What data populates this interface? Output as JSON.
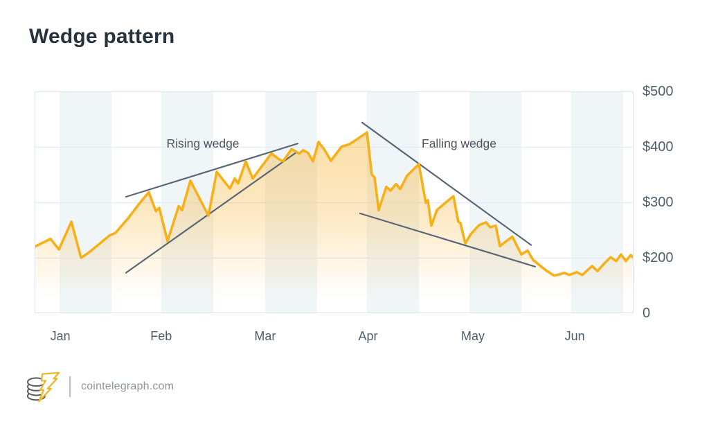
{
  "title": "Wedge pattern",
  "footer": {
    "site": "cointelegraph.com",
    "logo": "cointelegraph coin-stack with lightning bolt"
  },
  "colors": {
    "line": "#F7B017",
    "fill": "#F6AC1E",
    "trendline": "#5A6774",
    "grid": "#E4EDF3",
    "band": "#F0F5F8",
    "plot_border": "#D9E4EC",
    "title_text": "#26323E",
    "axis_text": "#4E5D6B",
    "annotation_text": "#49545F"
  },
  "chart_data": {
    "type": "area",
    "title": "Wedge pattern",
    "x_unit": "months (t: 0 = left edge of plot, 1 unit = 1 month; month tick labels sit at ~0.25+k)",
    "y_unit": "USD",
    "legend": "none",
    "grid": "horizontal lines at $200/$300/$400/$500 plus alternating half-month background bands",
    "x_axis": {
      "ticks": [
        {
          "label": "Jan",
          "t": 0.25
        },
        {
          "label": "Feb",
          "t": 1.23
        },
        {
          "label": "Mar",
          "t": 2.24
        },
        {
          "label": "Apr",
          "t": 3.24
        },
        {
          "label": "May",
          "t": 4.26
        },
        {
          "label": "Jun",
          "t": 5.25
        }
      ]
    },
    "y_axis": {
      "ticks": [
        {
          "label": "$500",
          "value": 500,
          "py": 0
        },
        {
          "label": "$400",
          "value": 400,
          "py": 80
        },
        {
          "label": "$300",
          "value": 300,
          "py": 160
        },
        {
          "label": "$200",
          "value": 200,
          "py": 240
        },
        {
          "label": "0",
          "value": 0,
          "py": 320
        }
      ]
    },
    "bands": [
      [
        0.242,
        0.747
      ],
      [
        1.231,
        1.736
      ],
      [
        2.241,
        2.746
      ],
      [
        3.23,
        3.735
      ],
      [
        4.226,
        4.731
      ],
      [
        5.215,
        5.72
      ]
    ],
    "series": [
      {
        "name": "price",
        "points": [
          [
            0.0,
            220
          ],
          [
            0.155,
            234
          ],
          [
            0.236,
            215
          ],
          [
            0.357,
            265
          ],
          [
            0.451,
            200
          ],
          [
            0.525,
            209
          ],
          [
            0.727,
            240
          ],
          [
            0.787,
            245
          ],
          [
            0.908,
            271
          ],
          [
            1.023,
            299
          ],
          [
            1.11,
            318
          ],
          [
            1.178,
            284
          ],
          [
            1.211,
            290
          ],
          [
            1.292,
            230
          ],
          [
            1.4,
            293
          ],
          [
            1.433,
            286
          ],
          [
            1.514,
            339
          ],
          [
            1.689,
            276
          ],
          [
            1.77,
            355
          ],
          [
            1.898,
            325
          ],
          [
            1.945,
            343
          ],
          [
            1.978,
            334
          ],
          [
            2.052,
            374
          ],
          [
            2.12,
            343
          ],
          [
            2.301,
            388
          ],
          [
            2.375,
            378
          ],
          [
            2.416,
            374
          ],
          [
            2.497,
            396
          ],
          [
            2.571,
            388
          ],
          [
            2.611,
            394
          ],
          [
            2.658,
            389
          ],
          [
            2.705,
            374
          ],
          [
            2.759,
            409
          ],
          [
            2.813,
            396
          ],
          [
            2.88,
            375
          ],
          [
            2.981,
            400
          ],
          [
            3.062,
            405
          ],
          [
            3.23,
            426
          ],
          [
            3.277,
            350
          ],
          [
            3.304,
            345
          ],
          [
            3.344,
            286
          ],
          [
            3.418,
            328
          ],
          [
            3.459,
            321
          ],
          [
            3.512,
            333
          ],
          [
            3.553,
            324
          ],
          [
            3.62,
            348
          ],
          [
            3.735,
            369
          ],
          [
            3.802,
            299
          ],
          [
            3.822,
            304
          ],
          [
            3.856,
            258
          ],
          [
            3.91,
            286
          ],
          [
            4.004,
            301
          ],
          [
            4.071,
            311
          ],
          [
            4.118,
            265
          ],
          [
            4.138,
            263
          ],
          [
            4.186,
            226
          ],
          [
            4.24,
            243
          ],
          [
            4.32,
            259
          ],
          [
            4.388,
            264
          ],
          [
            4.428,
            255
          ],
          [
            4.482,
            258
          ],
          [
            4.522,
            221
          ],
          [
            4.643,
            238
          ],
          [
            4.731,
            206
          ],
          [
            4.791,
            213
          ],
          [
            4.845,
            196
          ],
          [
            4.912,
            186
          ],
          [
            4.98,
            176
          ],
          [
            5.047,
            168
          ],
          [
            5.101,
            170
          ],
          [
            5.148,
            173
          ],
          [
            5.195,
            169
          ],
          [
            5.269,
            174
          ],
          [
            5.323,
            169
          ],
          [
            5.417,
            185
          ],
          [
            5.471,
            176
          ],
          [
            5.538,
            190
          ],
          [
            5.599,
            201
          ],
          [
            5.653,
            194
          ],
          [
            5.7,
            206
          ],
          [
            5.747,
            194
          ],
          [
            5.794,
            205
          ],
          [
            5.821,
            200
          ]
        ]
      }
    ],
    "trendlines": [
      {
        "name": "rising-wedge-upper",
        "from": [
          0.888,
          310
        ],
        "to": [
          2.557,
          406
        ]
      },
      {
        "name": "rising-wedge-lower",
        "from": [
          0.888,
          173
        ],
        "to": [
          2.543,
          390
        ]
      },
      {
        "name": "falling-wedge-upper",
        "from": [
          3.183,
          444
        ],
        "to": [
          4.825,
          223
        ]
      },
      {
        "name": "falling-wedge-lower",
        "from": [
          3.163,
          280
        ],
        "to": [
          4.865,
          184
        ]
      }
    ],
    "annotations": [
      {
        "text": "Rising wedge",
        "t": 1.635,
        "v": 406
      },
      {
        "text": "Falling wedge",
        "t": 4.125,
        "v": 406
      }
    ]
  }
}
